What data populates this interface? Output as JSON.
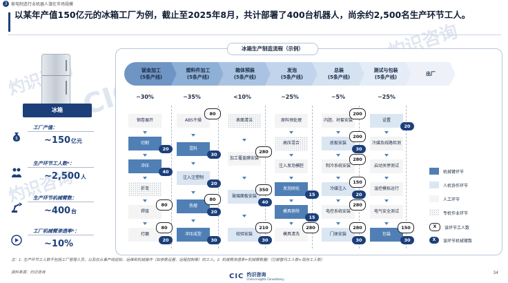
{
  "top_tag": {
    "number": "3",
    "text": "家电制造行业机器人潜在市场规模"
  },
  "headline": "以某年产值150亿元的冰箱工厂为例，截止至2025年8月，共计部署了400台机器人，尚余约2,500名生产环节工人。",
  "watermark": {
    "cn": "灼识咨询",
    "en": "China Insights Consultancy",
    "cic": "CIC"
  },
  "left_panel": {
    "product_label": "冰箱",
    "stats": [
      {
        "label": "工厂产值：",
        "value": "~150",
        "unit": "亿元",
        "icon": "money-bag-icon"
      },
      {
        "label": "生产环节工人数*：",
        "value": "~2,500",
        "unit": "人",
        "icon": "workers-icon"
      },
      {
        "label": "生产环节机械臂数：",
        "value": "~400",
        "unit": "台",
        "icon": "robot-arm-icon"
      },
      {
        "label": "工厂机械臂渗透率*：",
        "value": "~10%",
        "unit": "",
        "icon": "gauge-icon"
      }
    ]
  },
  "panel": {
    "title": "冰箱生产制造流程（示例）",
    "stages": [
      {
        "name": "钣金加工",
        "sub": "(5条产线)",
        "pct": "~30%"
      },
      {
        "name": "塑料件加工",
        "sub": "(5条产线)",
        "pct": "~35%"
      },
      {
        "name": "箱体预装",
        "sub": "(5条产线)",
        "pct": "<10%"
      },
      {
        "name": "发泡",
        "sub": "(5条产线)",
        "pct": "~25%"
      },
      {
        "name": "总装",
        "sub": "(5条产线)",
        "pct": "~5%"
      },
      {
        "name": "测试与包装",
        "sub": "(5条产线)",
        "pct": "~25%"
      },
      {
        "name": "出厂",
        "sub": "",
        "pct": ""
      }
    ],
    "columns": [
      {
        "steps": [
          {
            "text": "钢卷展开",
            "type": "white",
            "w": "",
            "d": ""
          },
          {
            "text": "切割",
            "type": "dark",
            "w": "",
            "d": "20"
          },
          {
            "text": "冲压",
            "type": "dark",
            "w": "",
            "d": "40"
          },
          {
            "text": "折弯",
            "type": "dots",
            "w": "",
            "d": ""
          },
          {
            "text": "焊接",
            "type": "white",
            "w": "80",
            "d": ""
          },
          {
            "text": "打磨",
            "type": "white",
            "w": "80",
            "d": "20"
          }
        ]
      },
      {
        "steps": [
          {
            "text": "ABS干燥",
            "type": "white",
            "w": "80",
            "d": ""
          },
          {
            "text": "混料",
            "type": "dark",
            "w": "",
            "d": "30"
          },
          {
            "text": "注入注塑制",
            "type": "light",
            "w": "",
            "d": "20"
          },
          {
            "text": "热熔",
            "type": "dark",
            "w": "80",
            "d": "20"
          },
          {
            "text": "冲压成型",
            "type": "dark",
            "w": "",
            "d": "30"
          }
        ]
      },
      {
        "steps": [
          {
            "text": "表面清洁",
            "type": "dots",
            "w": "",
            "d": ""
          },
          {
            "text": "加工覆盖膜安装",
            "type": "white",
            "w": "280",
            "d": ""
          },
          {
            "text": "玻璃面板安装",
            "type": "light",
            "w": "350",
            "d": "40"
          },
          {
            "text": "校验安装",
            "type": "light",
            "w": "210",
            "d": "30"
          }
        ]
      },
      {
        "steps": [
          {
            "text": "原料预处理",
            "type": "white",
            "w": "",
            "d": ""
          },
          {
            "text": "高压混合",
            "type": "dots",
            "w": "",
            "d": ""
          },
          {
            "text": "注入发泡模腔",
            "type": "white",
            "w": "",
            "d": ""
          },
          {
            "text": "发泡固化",
            "type": "dark",
            "w": "",
            "d": "15"
          },
          {
            "text": "模具移除",
            "type": "dark",
            "w": "",
            "d": "15"
          },
          {
            "text": "模具清洗",
            "type": "white",
            "w": "280",
            "d": ""
          }
        ]
      },
      {
        "steps": [
          {
            "text": "内胆、衬套安装",
            "type": "white",
            "w": "200",
            "d": ""
          },
          {
            "text": "底板安装",
            "type": "light",
            "w": "200",
            "d": "30"
          },
          {
            "text": "制冷系统安装",
            "type": "white",
            "w": "280",
            "d": ""
          },
          {
            "text": "冷媒注入",
            "type": "light",
            "w": "150",
            "d": "20"
          },
          {
            "text": "电控系统安装",
            "type": "white",
            "w": "280",
            "d": ""
          },
          {
            "text": "门体安装",
            "type": "light",
            "w": "280",
            "d": "30"
          }
        ]
      },
      {
        "steps": [
          {
            "text": "设置",
            "type": "light",
            "w": "",
            "d": "20"
          },
          {
            "text": "冷媒及线路检测",
            "type": "white",
            "w": "",
            "d": ""
          },
          {
            "text": "启动关停测试",
            "type": "white",
            "w": "",
            "d": ""
          },
          {
            "text": "温控模拟运行",
            "type": "white",
            "w": "",
            "d": ""
          },
          {
            "text": "电气安全测试",
            "type": "white",
            "w": "",
            "d": ""
          },
          {
            "text": "包装",
            "type": "dark",
            "w": "150",
            "d": "30"
          }
        ]
      }
    ],
    "legend": [
      {
        "type": "dark",
        "label": "机械臂环节"
      },
      {
        "type": "light",
        "label": "人机协作环节"
      },
      {
        "type": "white",
        "label": "人工环节"
      },
      {
        "type": "dots",
        "label": "专机作业环节"
      },
      {
        "type": "ow",
        "label": "该环节工人数",
        "sym": "X"
      },
      {
        "type": "od",
        "label": "该环节机械臂数",
        "sym": "X"
      }
    ]
  },
  "footnote": "注：1. 生产环节工人数不包括工厂管理人员、以及仅从事产线巡检、运维和机械操作（如参数设置、远程控制等）的工人。2. 机械臂渗透率=机械臂数量/（已被替代工人数+现存工人数）",
  "source": "资料来源：灼识咨询",
  "page": "34",
  "footer": {
    "cic": "CIC",
    "cn": "灼识咨询",
    "en": "China Insights Consultancy"
  }
}
